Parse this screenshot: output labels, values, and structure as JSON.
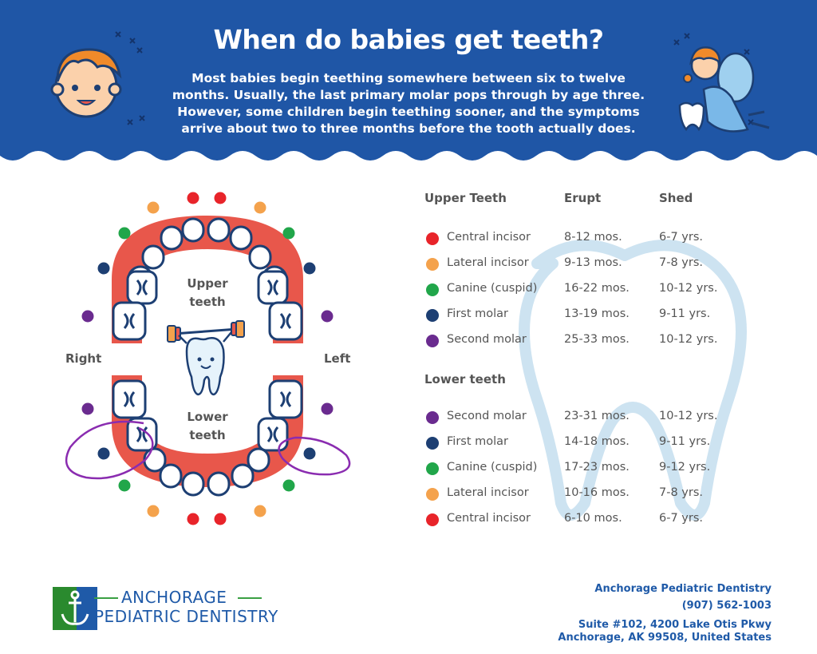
{
  "header": {
    "title": "When do babies get teeth?",
    "intro": "Most babies begin teething somewhere between six to twelve months. Usually, the last primary molar pops through by age three. However, some children begin teething sooner, and the symptoms arrive about two to three months before the tooth actually does.",
    "bg_color": "#1f56a6"
  },
  "diagram": {
    "upper_label_1": "Upper",
    "upper_label_2": "teeth",
    "lower_label_1": "Lower",
    "lower_label_2": "teeth",
    "right_label": "Right",
    "left_label": "Left"
  },
  "colors": {
    "central_incisor": "#e8242a",
    "lateral_incisor": "#f4a24c",
    "canine": "#21a64a",
    "first_molar": "#1d3f73",
    "second_molar": "#6a2b8f",
    "gum": "#e8574b",
    "tooth_outline": "#1d3f73",
    "annotation": "#8a2cb0"
  },
  "table": {
    "upper_heading": "Upper Teeth",
    "erupt_heading": "Erupt",
    "shed_heading": "Shed",
    "lower_heading": "Lower teeth",
    "upper_rows": [
      {
        "name": "Central incisor",
        "erupt": "8-12 mos.",
        "shed": "6-7 yrs.",
        "color": "#e8242a"
      },
      {
        "name": "Lateral incisor",
        "erupt": "9-13 mos.",
        "shed": "7-8 yrs.",
        "color": "#f4a24c"
      },
      {
        "name": "Canine (cuspid)",
        "erupt": "16-22 mos.",
        "shed": "10-12 yrs.",
        "color": "#21a64a"
      },
      {
        "name": "First molar",
        "erupt": "13-19 mos.",
        "shed": "9-11 yrs.",
        "color": "#1d3f73"
      },
      {
        "name": "Second molar",
        "erupt": "25-33 mos.",
        "shed": "10-12 yrs.",
        "color": "#6a2b8f"
      }
    ],
    "lower_rows": [
      {
        "name": "Second molar",
        "erupt": "23-31 mos.",
        "shed": "10-12 yrs.",
        "color": "#6a2b8f"
      },
      {
        "name": "First molar",
        "erupt": "14-18 mos.",
        "shed": "9-11 yrs.",
        "color": "#1d3f73"
      },
      {
        "name": "Canine (cuspid)",
        "erupt": "17-23 mos.",
        "shed": "9-12 yrs.",
        "color": "#21a64a"
      },
      {
        "name": "Lateral incisor",
        "erupt": "10-16 mos.",
        "shed": "7-8 yrs.",
        "color": "#f4a24c"
      },
      {
        "name": "Central incisor",
        "erupt": "6-10 mos.",
        "shed": "6-7 yrs.",
        "color": "#e8242a"
      }
    ]
  },
  "footer": {
    "logo_line1": "ANCHORAGE",
    "logo_line2": "PEDIATRIC DENTISTRY",
    "contact_name": "Anchorage Pediatric Dentistry",
    "contact_phone": "(907) 562-1003",
    "address_line1": "Suite #102, 4200 Lake Otis Pkwy",
    "address_line2": "Anchorage, AK 99508, United States"
  },
  "icons": [
    "baby-face-icon",
    "tooth-fairy-icon",
    "weightlifting-tooth-icon",
    "anchor-logo-icon",
    "tooth-outline-icon"
  ]
}
